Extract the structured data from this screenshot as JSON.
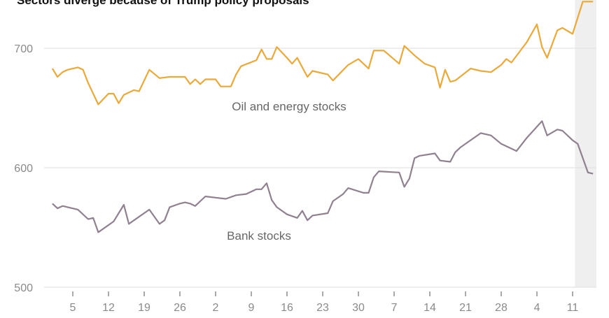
{
  "chart_data": {
    "type": "line",
    "title": "Sectors diverge because of Trump policy proposals",
    "xlabel": "",
    "ylabel": "",
    "ylim": [
      500,
      740
    ],
    "xlim": [
      "2024-07-30",
      "2024-11-16"
    ],
    "grid": true,
    "y_ticks": [
      500,
      600,
      700
    ],
    "x_ticks": [
      {
        "date": "2024-08-05",
        "label": "5"
      },
      {
        "date": "2024-08-12",
        "label": "12"
      },
      {
        "date": "2024-08-19",
        "label": "19"
      },
      {
        "date": "2024-08-26",
        "label": "26"
      },
      {
        "date": "2024-09-02",
        "label": "2"
      },
      {
        "date": "2024-09-09",
        "label": "9"
      },
      {
        "date": "2024-09-16",
        "label": "16"
      },
      {
        "date": "2024-09-23",
        "label": "23"
      },
      {
        "date": "2024-09-30",
        "label": "30"
      },
      {
        "date": "2024-10-07",
        "label": "7"
      },
      {
        "date": "2024-10-14",
        "label": "14"
      },
      {
        "date": "2024-10-21",
        "label": "21"
      },
      {
        "date": "2024-10-28",
        "label": "28"
      },
      {
        "date": "2024-11-04",
        "label": "4"
      },
      {
        "date": "2024-11-11",
        "label": "11"
      }
    ],
    "highlight_range": [
      "2024-11-12",
      "2024-11-16"
    ],
    "series": [
      {
        "name": "Oil and energy stocks",
        "color": "#e9a93b",
        "points": [
          [
            "2024-08-01",
            683
          ],
          [
            "2024-08-02",
            676
          ],
          [
            "2024-08-03",
            680
          ],
          [
            "2024-08-04",
            682
          ],
          [
            "2024-08-06",
            684
          ],
          [
            "2024-08-07",
            682
          ],
          [
            "2024-08-08",
            671
          ],
          [
            "2024-08-10",
            653
          ],
          [
            "2024-08-12",
            662
          ],
          [
            "2024-08-13",
            662
          ],
          [
            "2024-08-14",
            654
          ],
          [
            "2024-08-15",
            661
          ],
          [
            "2024-08-17",
            665
          ],
          [
            "2024-08-18",
            664
          ],
          [
            "2024-08-20",
            682
          ],
          [
            "2024-08-22",
            675
          ],
          [
            "2024-08-24",
            676
          ],
          [
            "2024-08-27",
            676
          ],
          [
            "2024-08-28",
            670
          ],
          [
            "2024-08-29",
            674
          ],
          [
            "2024-08-30",
            670
          ],
          [
            "2024-08-31",
            674
          ],
          [
            "2024-09-02",
            674
          ],
          [
            "2024-09-03",
            668
          ],
          [
            "2024-09-05",
            668
          ],
          [
            "2024-09-06",
            678
          ],
          [
            "2024-09-07",
            685
          ],
          [
            "2024-09-10",
            690
          ],
          [
            "2024-09-11",
            699
          ],
          [
            "2024-09-12",
            691
          ],
          [
            "2024-09-13",
            691
          ],
          [
            "2024-09-14",
            701
          ],
          [
            "2024-09-16",
            692
          ],
          [
            "2024-09-17",
            687
          ],
          [
            "2024-09-18",
            692
          ],
          [
            "2024-09-19",
            684
          ],
          [
            "2024-09-20",
            676
          ],
          [
            "2024-09-21",
            681
          ],
          [
            "2024-09-24",
            678
          ],
          [
            "2024-09-25",
            673
          ],
          [
            "2024-09-28",
            686
          ],
          [
            "2024-09-30",
            691
          ],
          [
            "2024-10-02",
            683
          ],
          [
            "2024-10-03",
            698
          ],
          [
            "2024-10-05",
            698
          ],
          [
            "2024-10-08",
            687
          ],
          [
            "2024-10-09",
            702
          ],
          [
            "2024-10-11",
            694
          ],
          [
            "2024-10-13",
            687
          ],
          [
            "2024-10-15",
            684
          ],
          [
            "2024-10-16",
            667
          ],
          [
            "2024-10-17",
            682
          ],
          [
            "2024-10-18",
            672
          ],
          [
            "2024-10-19",
            673
          ],
          [
            "2024-10-22",
            683
          ],
          [
            "2024-10-24",
            681
          ],
          [
            "2024-10-26",
            680
          ],
          [
            "2024-10-28",
            686
          ],
          [
            "2024-10-29",
            691
          ],
          [
            "2024-10-30",
            688
          ],
          [
            "2024-11-02",
            705
          ],
          [
            "2024-11-04",
            720
          ],
          [
            "2024-11-05",
            701
          ],
          [
            "2024-11-06",
            692
          ],
          [
            "2024-11-08",
            715
          ],
          [
            "2024-11-09",
            717
          ],
          [
            "2024-11-11",
            712
          ],
          [
            "2024-11-13",
            739
          ],
          [
            "2024-11-15",
            739
          ]
        ]
      },
      {
        "name": "Bank stocks",
        "color": "#8f8190",
        "points": [
          [
            "2024-08-01",
            570
          ],
          [
            "2024-08-02",
            566
          ],
          [
            "2024-08-03",
            568
          ],
          [
            "2024-08-04",
            567
          ],
          [
            "2024-08-06",
            565
          ],
          [
            "2024-08-08",
            557
          ],
          [
            "2024-08-09",
            558
          ],
          [
            "2024-08-10",
            546
          ],
          [
            "2024-08-13",
            555
          ],
          [
            "2024-08-15",
            569
          ],
          [
            "2024-08-16",
            553
          ],
          [
            "2024-08-17",
            556
          ],
          [
            "2024-08-20",
            565
          ],
          [
            "2024-08-22",
            553
          ],
          [
            "2024-08-23",
            556
          ],
          [
            "2024-08-24",
            567
          ],
          [
            "2024-08-26",
            570
          ],
          [
            "2024-08-27",
            571
          ],
          [
            "2024-08-28",
            570
          ],
          [
            "2024-08-29",
            568
          ],
          [
            "2024-08-31",
            576
          ],
          [
            "2024-09-02",
            575
          ],
          [
            "2024-09-04",
            574
          ],
          [
            "2024-09-06",
            577
          ],
          [
            "2024-09-08",
            578
          ],
          [
            "2024-09-10",
            582
          ],
          [
            "2024-09-11",
            582
          ],
          [
            "2024-09-12",
            587
          ],
          [
            "2024-09-13",
            573
          ],
          [
            "2024-09-14",
            567
          ],
          [
            "2024-09-16",
            561
          ],
          [
            "2024-09-18",
            558
          ],
          [
            "2024-09-19",
            564
          ],
          [
            "2024-09-20",
            556
          ],
          [
            "2024-09-21",
            560
          ],
          [
            "2024-09-24",
            562
          ],
          [
            "2024-09-25",
            572
          ],
          [
            "2024-09-27",
            578
          ],
          [
            "2024-09-28",
            583
          ],
          [
            "2024-10-01",
            579
          ],
          [
            "2024-10-02",
            579
          ],
          [
            "2024-10-03",
            592
          ],
          [
            "2024-10-04",
            597
          ],
          [
            "2024-10-08",
            596
          ],
          [
            "2024-10-09",
            584
          ],
          [
            "2024-10-10",
            591
          ],
          [
            "2024-10-11",
            608
          ],
          [
            "2024-10-12",
            610
          ],
          [
            "2024-10-15",
            612
          ],
          [
            "2024-10-16",
            606
          ],
          [
            "2024-10-18",
            605
          ],
          [
            "2024-10-19",
            613
          ],
          [
            "2024-10-20",
            617
          ],
          [
            "2024-10-24",
            629
          ],
          [
            "2024-10-26",
            627
          ],
          [
            "2024-10-28",
            620
          ],
          [
            "2024-10-31",
            614
          ],
          [
            "2024-11-02",
            625
          ],
          [
            "2024-11-05",
            639
          ],
          [
            "2024-11-06",
            627
          ],
          [
            "2024-11-08",
            632
          ],
          [
            "2024-11-09",
            631
          ],
          [
            "2024-11-11",
            623
          ],
          [
            "2024-11-12",
            620
          ],
          [
            "2024-11-14",
            596
          ],
          [
            "2024-11-15",
            595
          ]
        ]
      }
    ]
  }
}
